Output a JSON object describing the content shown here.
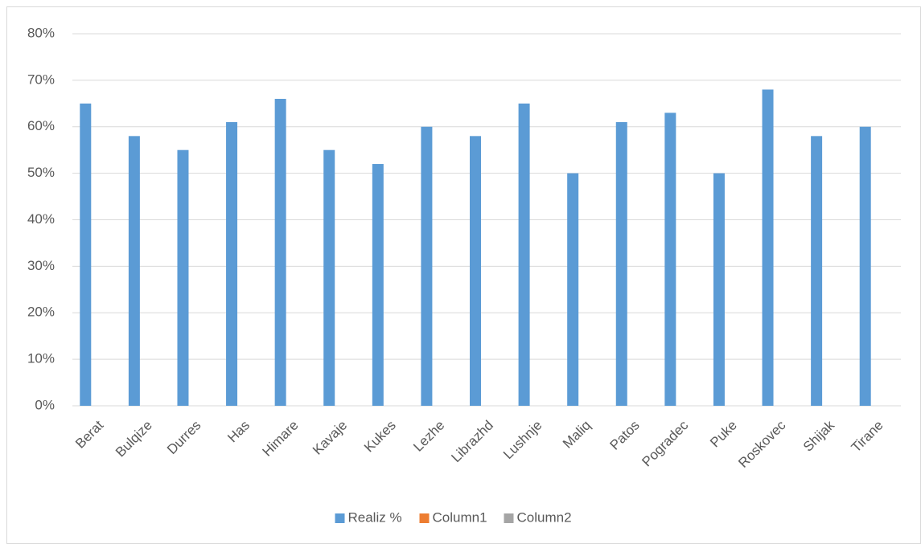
{
  "chart_data": {
    "type": "bar",
    "categories": [
      "Berat",
      "Bulqize",
      "Durres",
      "Has",
      "Himare",
      "Kavaje",
      "Kukes",
      "Lezhe",
      "Librazhd",
      "Lushnje",
      "Maliq",
      "Patos",
      "Pogradec",
      "Puke",
      "Roskovec",
      "Shijak",
      "Tirane"
    ],
    "series": [
      {
        "name": "Realiz %",
        "color": "#5b9bd5",
        "values": [
          65,
          58,
          55,
          61,
          66,
          55,
          52,
          60,
          58,
          65,
          50,
          61,
          63,
          50,
          68,
          58,
          60
        ]
      },
      {
        "name": "Column1",
        "color": "#ed7d31",
        "values": [
          null,
          null,
          null,
          null,
          null,
          null,
          null,
          null,
          null,
          null,
          null,
          null,
          null,
          null,
          null,
          null,
          null
        ]
      },
      {
        "name": "Column2",
        "color": "#a5a5a5",
        "values": [
          null,
          null,
          null,
          null,
          null,
          null,
          null,
          null,
          null,
          null,
          null,
          null,
          null,
          null,
          null,
          null,
          null
        ]
      }
    ],
    "ylim": [
      0,
      80
    ],
    "yticks": [
      {
        "value": 0,
        "label": "0%"
      },
      {
        "value": 10,
        "label": "10%"
      },
      {
        "value": 20,
        "label": "20%"
      },
      {
        "value": 30,
        "label": "30%"
      },
      {
        "value": 40,
        "label": "40%"
      },
      {
        "value": 50,
        "label": "50%"
      },
      {
        "value": 60,
        "label": "60%"
      },
      {
        "value": 70,
        "label": "70%"
      },
      {
        "value": 80,
        "label": "80%"
      }
    ],
    "grid": true,
    "legend": "bottom"
  }
}
